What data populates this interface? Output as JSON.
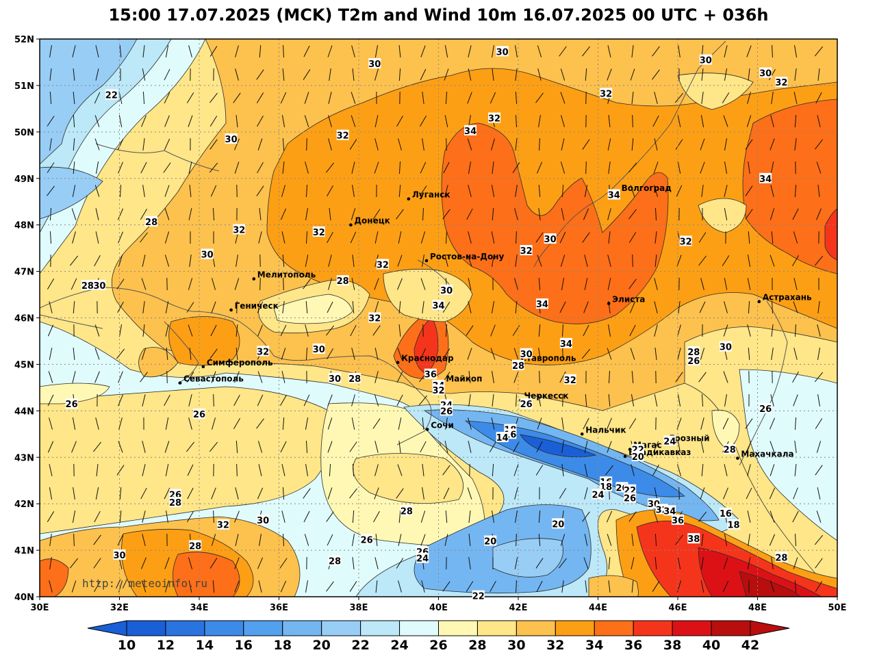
{
  "title": "15:00 17.07.2025 (MCK) T2m and Wind 10m 16.07.2025 00 UTC + 036h",
  "watermark": "http://meteoinfo.ru",
  "map": {
    "lon_range": [
      30,
      50
    ],
    "lat_range": [
      40,
      52
    ],
    "lat_ticks": [
      "52N",
      "51N",
      "50N",
      "49N",
      "48N",
      "47N",
      "46N",
      "45N",
      "44N",
      "43N",
      "42N",
      "41N",
      "40N"
    ],
    "lon_ticks": [
      "30E",
      "32E",
      "34E",
      "36E",
      "38E",
      "40E",
      "42E",
      "44E",
      "46E",
      "48E",
      "50E"
    ],
    "background_color": "#fee689"
  },
  "colorbar": {
    "labels": [
      "10",
      "12",
      "14",
      "16",
      "18",
      "20",
      "22",
      "24",
      "26",
      "28",
      "30",
      "32",
      "34",
      "36",
      "38",
      "40",
      "42"
    ],
    "colors": [
      "#1a5fd6",
      "#2a74e0",
      "#3c8be8",
      "#53a0ee",
      "#74b6f1",
      "#98cdf5",
      "#bce8f8",
      "#e0fbfc",
      "#fff8b4",
      "#fee689",
      "#fdc14d",
      "#fd9f14",
      "#fd6f18",
      "#f5351b",
      "#dc1116",
      "#b80e0e"
    ],
    "under_color": "#1a5fd6",
    "over_color": "#b80e0e"
  },
  "cities": [
    {
      "name": "Луганск",
      "lon": 39.25,
      "lat": 48.56
    },
    {
      "name": "Донецк",
      "lon": 37.8,
      "lat": 48.0
    },
    {
      "name": "Ростов-на-Дону",
      "lon": 39.7,
      "lat": 47.23
    },
    {
      "name": "Волгоград",
      "lon": 44.5,
      "lat": 48.7
    },
    {
      "name": "Мелитополь",
      "lon": 35.37,
      "lat": 46.84
    },
    {
      "name": "Геническ",
      "lon": 34.8,
      "lat": 46.17
    },
    {
      "name": "Элиста",
      "lon": 44.27,
      "lat": 46.31
    },
    {
      "name": "Астрахань",
      "lon": 48.04,
      "lat": 46.35
    },
    {
      "name": "Симферополь",
      "lon": 34.1,
      "lat": 44.95
    },
    {
      "name": "Севастополь",
      "lon": 33.52,
      "lat": 44.6
    },
    {
      "name": "Краснодар",
      "lon": 38.98,
      "lat": 45.04
    },
    {
      "name": "Майкоп",
      "lon": 40.1,
      "lat": 44.6
    },
    {
      "name": "Ставрополь",
      "lon": 41.97,
      "lat": 45.04
    },
    {
      "name": "Черкесск",
      "lon": 42.06,
      "lat": 44.23
    },
    {
      "name": "Нальчик",
      "lon": 43.6,
      "lat": 43.5
    },
    {
      "name": "Сочи",
      "lon": 39.72,
      "lat": 43.6
    },
    {
      "name": "Магас",
      "lon": 44.8,
      "lat": 43.17
    },
    {
      "name": "Грозный",
      "lon": 45.7,
      "lat": 43.32
    },
    {
      "name": "Владикавказ",
      "lon": 44.68,
      "lat": 43.02
    },
    {
      "name": "Махачкала",
      "lon": 47.5,
      "lat": 42.98
    }
  ],
  "isotherm_labels": [
    {
      "text": "30",
      "lon": 38.4,
      "lat": 51.47
    },
    {
      "text": "30",
      "lon": 41.6,
      "lat": 51.73
    },
    {
      "text": "30",
      "lon": 46.7,
      "lat": 51.55
    },
    {
      "text": "30",
      "lon": 48.2,
      "lat": 51.27
    },
    {
      "text": "32",
      "lon": 48.6,
      "lat": 51.07
    },
    {
      "text": "22",
      "lon": 31.8,
      "lat": 50.8
    },
    {
      "text": "32",
      "lon": 44.2,
      "lat": 50.83
    },
    {
      "text": "32",
      "lon": 41.4,
      "lat": 50.3
    },
    {
      "text": "34",
      "lon": 40.8,
      "lat": 50.03
    },
    {
      "text": "32",
      "lon": 37.6,
      "lat": 49.93
    },
    {
      "text": "30",
      "lon": 34.8,
      "lat": 49.85
    },
    {
      "text": "34",
      "lon": 48.2,
      "lat": 49.0
    },
    {
      "text": "34",
      "lon": 44.4,
      "lat": 48.65
    },
    {
      "text": "28",
      "lon": 32.8,
      "lat": 48.07
    },
    {
      "text": "32",
      "lon": 35.0,
      "lat": 47.9
    },
    {
      "text": "32",
      "lon": 37.0,
      "lat": 47.85
    },
    {
      "text": "30",
      "lon": 42.8,
      "lat": 47.7
    },
    {
      "text": "32",
      "lon": 46.2,
      "lat": 47.65
    },
    {
      "text": "32",
      "lon": 42.2,
      "lat": 47.45
    },
    {
      "text": "30",
      "lon": 34.2,
      "lat": 47.37
    },
    {
      "text": "32",
      "lon": 38.6,
      "lat": 47.15
    },
    {
      "text": "28",
      "lon": 37.6,
      "lat": 46.8
    },
    {
      "text": "28",
      "lon": 31.2,
      "lat": 46.7
    },
    {
      "text": "30",
      "lon": 31.5,
      "lat": 46.7
    },
    {
      "text": "30",
      "lon": 40.2,
      "lat": 46.6
    },
    {
      "text": "34",
      "lon": 40.0,
      "lat": 46.27
    },
    {
      "text": "34",
      "lon": 42.6,
      "lat": 46.3
    },
    {
      "text": "32",
      "lon": 38.4,
      "lat": 46.0
    },
    {
      "text": "34",
      "lon": 43.2,
      "lat": 45.45
    },
    {
      "text": "30",
      "lon": 47.2,
      "lat": 45.38
    },
    {
      "text": "32",
      "lon": 35.6,
      "lat": 45.28
    },
    {
      "text": "30",
      "lon": 37.0,
      "lat": 45.33
    },
    {
      "text": "28",
      "lon": 46.4,
      "lat": 45.27
    },
    {
      "text": "26",
      "lon": 46.4,
      "lat": 45.08
    },
    {
      "text": "30",
      "lon": 42.2,
      "lat": 45.23
    },
    {
      "text": "28",
      "lon": 42.0,
      "lat": 44.98
    },
    {
      "text": "36",
      "lon": 39.8,
      "lat": 44.79
    },
    {
      "text": "32",
      "lon": 43.3,
      "lat": 44.67
    },
    {
      "text": "30",
      "lon": 37.4,
      "lat": 44.7
    },
    {
      "text": "28",
      "lon": 37.9,
      "lat": 44.7
    },
    {
      "text": "34",
      "lon": 40.0,
      "lat": 44.55
    },
    {
      "text": "32",
      "lon": 40.0,
      "lat": 44.45
    },
    {
      "text": "26",
      "lon": 30.8,
      "lat": 44.15
    },
    {
      "text": "24",
      "lon": 40.2,
      "lat": 44.13
    },
    {
      "text": "26",
      "lon": 40.2,
      "lat": 44.0
    },
    {
      "text": "26",
      "lon": 42.2,
      "lat": 44.15
    },
    {
      "text": "26",
      "lon": 48.2,
      "lat": 44.05
    },
    {
      "text": "26",
      "lon": 34.0,
      "lat": 43.93
    },
    {
      "text": "18",
      "lon": 41.8,
      "lat": 43.6
    },
    {
      "text": "16",
      "lon": 41.8,
      "lat": 43.5
    },
    {
      "text": "14",
      "lon": 41.6,
      "lat": 43.43
    },
    {
      "text": "24",
      "lon": 45.8,
      "lat": 43.35
    },
    {
      "text": "22",
      "lon": 45.0,
      "lat": 43.17
    },
    {
      "text": "20",
      "lon": 45.0,
      "lat": 43.02
    },
    {
      "text": "28",
      "lon": 47.3,
      "lat": 43.17
    },
    {
      "text": "16",
      "lon": 44.2,
      "lat": 42.47
    },
    {
      "text": "18",
      "lon": 44.2,
      "lat": 42.37
    },
    {
      "text": "26",
      "lon": 44.6,
      "lat": 42.35
    },
    {
      "text": "22",
      "lon": 44.8,
      "lat": 42.3
    },
    {
      "text": "24",
      "lon": 44.0,
      "lat": 42.2
    },
    {
      "text": "26",
      "lon": 44.8,
      "lat": 42.13
    },
    {
      "text": "26",
      "lon": 33.4,
      "lat": 42.2
    },
    {
      "text": "28",
      "lon": 33.4,
      "lat": 42.03
    },
    {
      "text": "30",
      "lon": 45.4,
      "lat": 42.0
    },
    {
      "text": "32",
      "lon": 45.6,
      "lat": 41.88
    },
    {
      "text": "34",
      "lon": 45.8,
      "lat": 41.85
    },
    {
      "text": "16",
      "lon": 47.2,
      "lat": 41.8
    },
    {
      "text": "36",
      "lon": 46.0,
      "lat": 41.65
    },
    {
      "text": "18",
      "lon": 47.4,
      "lat": 41.55
    },
    {
      "text": "28",
      "lon": 39.2,
      "lat": 41.85
    },
    {
      "text": "30",
      "lon": 35.6,
      "lat": 41.65
    },
    {
      "text": "32",
      "lon": 34.6,
      "lat": 41.55
    },
    {
      "text": "20",
      "lon": 43.0,
      "lat": 41.57
    },
    {
      "text": "38",
      "lon": 46.4,
      "lat": 41.25
    },
    {
      "text": "26",
      "lon": 38.2,
      "lat": 41.23
    },
    {
      "text": "20",
      "lon": 41.3,
      "lat": 41.2
    },
    {
      "text": "28",
      "lon": 33.9,
      "lat": 41.1
    },
    {
      "text": "30",
      "lon": 32.0,
      "lat": 40.9
    },
    {
      "text": "26",
      "lon": 39.6,
      "lat": 40.97
    },
    {
      "text": "24",
      "lon": 39.6,
      "lat": 40.83
    },
    {
      "text": "28",
      "lon": 37.4,
      "lat": 40.77
    },
    {
      "text": "28",
      "lon": 48.6,
      "lat": 40.85
    },
    {
      "text": "22",
      "lon": 41.0,
      "lat": 40.02
    }
  ]
}
